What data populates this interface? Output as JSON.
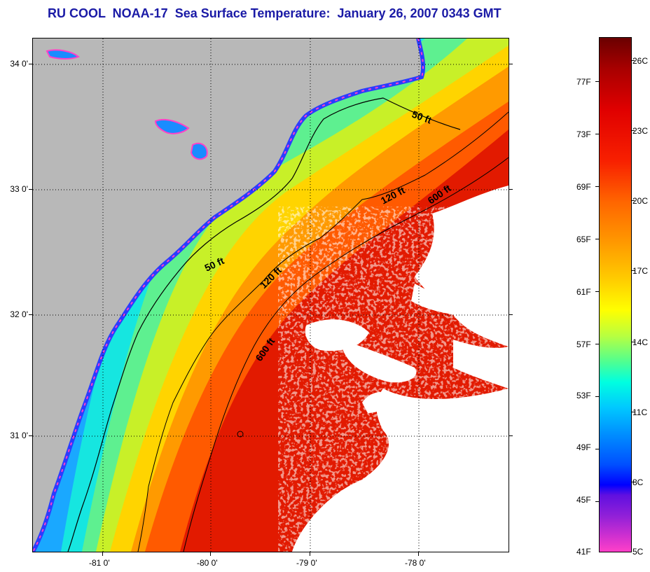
{
  "title": "RU COOL  NOAA-17  Sea Surface Temperature:  January 26, 2007 0343 GMT",
  "map": {
    "lat_ticks": [
      "34 0'",
      "33 0'",
      "32 0'",
      "31 0'"
    ],
    "lon_ticks": [
      "-81 0'",
      "-80 0'",
      "-79 0'",
      "-78 0'"
    ],
    "depth_contours": [
      "50 ft",
      "50 ft",
      "120 ft",
      "120 ft",
      "600 ft",
      "600 ft"
    ],
    "colors": {
      "land": "#b8b8b8",
      "cloud": "#ffffff",
      "graticule": "#000000"
    }
  },
  "colorbar": {
    "fahrenheit": [
      "77F",
      "73F",
      "69F",
      "65F",
      "61F",
      "57F",
      "53F",
      "49F",
      "45F",
      "41F"
    ],
    "celsius": [
      "26C",
      "23C",
      "20C",
      "17C",
      "14C",
      "11C",
      "8C",
      "5C"
    ]
  }
}
